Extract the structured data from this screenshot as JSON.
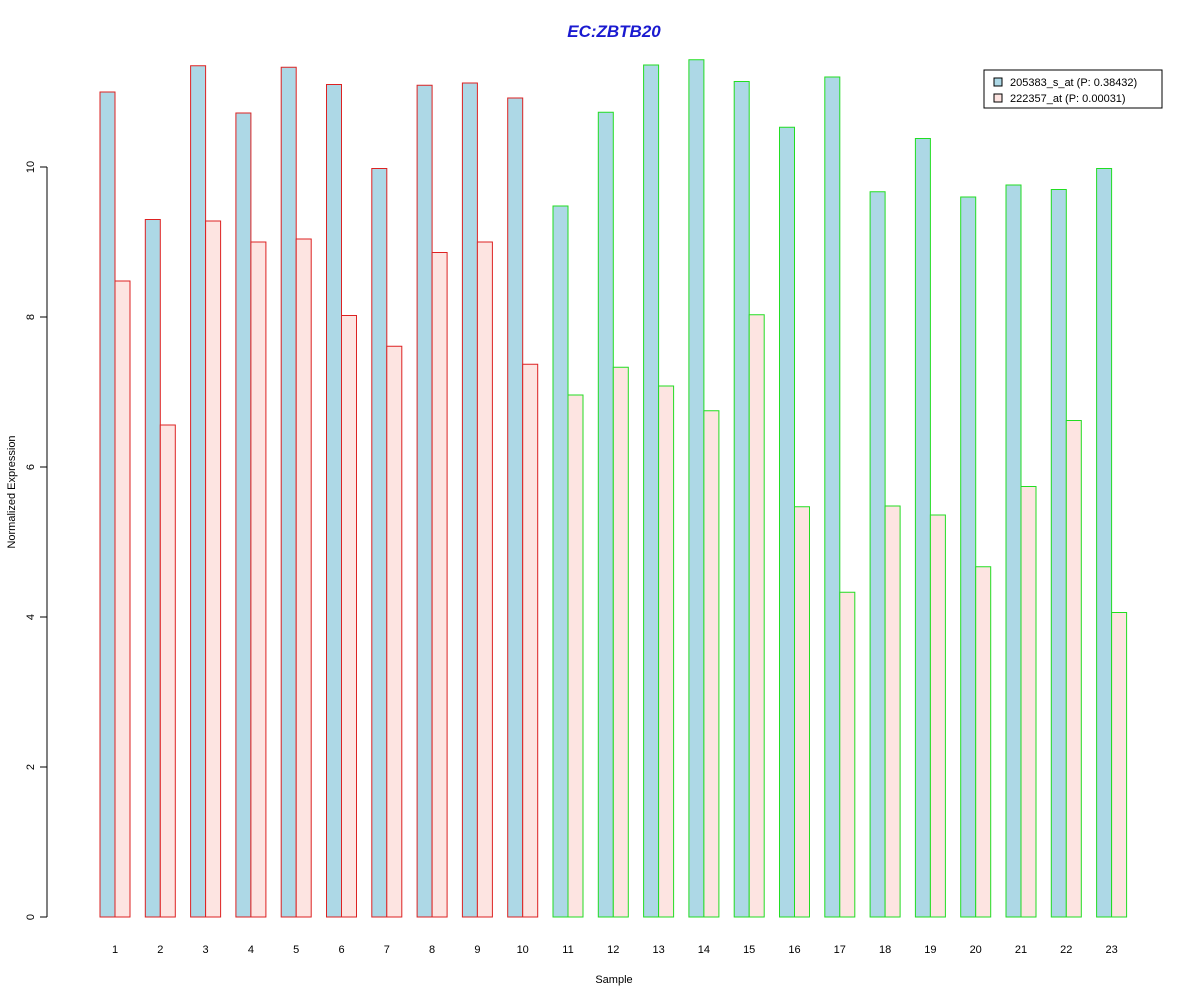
{
  "chart_data": {
    "type": "bar",
    "title": "EC:ZBTB20",
    "xlabel": "Sample",
    "ylabel": "Normalized Expression",
    "ylim": [
      0,
      11.5
    ],
    "yticks": [
      0,
      2,
      4,
      6,
      8,
      10
    ],
    "grid": false,
    "legend_position": "top-right",
    "categories": [
      "1",
      "2",
      "3",
      "4",
      "5",
      "6",
      "7",
      "8",
      "9",
      "10",
      "11",
      "12",
      "13",
      "14",
      "15",
      "16",
      "17",
      "18",
      "19",
      "20",
      "21",
      "22",
      "23"
    ],
    "group_border_colors": [
      "#dd2222",
      "#dd2222",
      "#dd2222",
      "#dd2222",
      "#dd2222",
      "#dd2222",
      "#dd2222",
      "#dd2222",
      "#dd2222",
      "#dd2222",
      "#22dd22",
      "#22dd22",
      "#22dd22",
      "#22dd22",
      "#22dd22",
      "#22dd22",
      "#22dd22",
      "#22dd22",
      "#22dd22",
      "#22dd22",
      "#22dd22",
      "#22dd22",
      "#22dd22"
    ],
    "series": [
      {
        "name": "205383_s_at (P: 0.38432)",
        "fill": "#add8e6",
        "values": [
          11.0,
          9.3,
          11.35,
          10.72,
          11.33,
          11.1,
          9.98,
          11.09,
          11.12,
          10.92,
          9.48,
          10.73,
          11.36,
          11.43,
          11.14,
          10.53,
          11.2,
          9.67,
          10.38,
          9.6,
          9.76,
          9.7,
          9.98
        ]
      },
      {
        "name": "222357_at (P: 0.00031)",
        "fill": "#fde4e1",
        "values": [
          8.48,
          6.56,
          9.28,
          9.0,
          9.04,
          8.02,
          7.61,
          8.86,
          9.0,
          7.37,
          6.96,
          7.33,
          7.08,
          6.75,
          8.03,
          5.47,
          4.33,
          5.48,
          5.36,
          4.67,
          5.74,
          6.62,
          4.06
        ]
      }
    ]
  }
}
